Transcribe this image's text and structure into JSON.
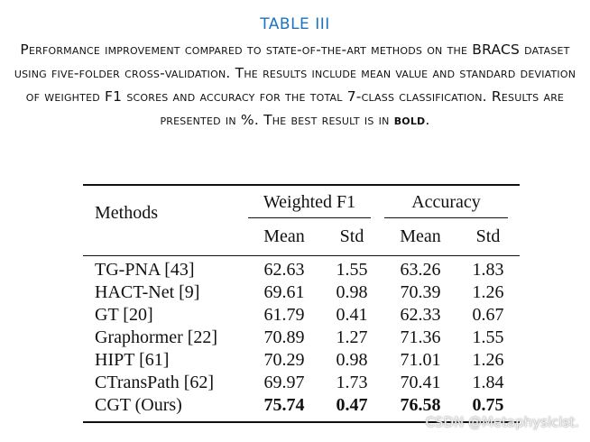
{
  "table_label": "TABLE III",
  "caption_text": "Performance improvement compared to state-of-the-art methods on the BRACS dataset using five-folder cross-validation. The results include mean value and standard deviation of weighted F1 scores and accuracy for the total 7-class classification. Results are presented in %. The best result is in",
  "caption_bold": "bold",
  "caption_end": ".",
  "header": {
    "methods": "Methods",
    "group1": "Weighted F1",
    "group2": "Accuracy",
    "mean1": "Mean",
    "std1": "Std",
    "mean2": "Mean",
    "std2": "Std"
  },
  "rows": [
    {
      "method": "TG-PNA [43]",
      "f1_mean": "62.63",
      "f1_std": "1.55",
      "acc_mean": "63.26",
      "acc_std": "1.83"
    },
    {
      "method": "HACT-Net [9]",
      "f1_mean": "69.61",
      "f1_std": "0.98",
      "acc_mean": "70.39",
      "acc_std": "1.26"
    },
    {
      "method": "GT [20]",
      "f1_mean": "61.79",
      "f1_std": "0.41",
      "acc_mean": "62.33",
      "acc_std": "0.67"
    },
    {
      "method": "Graphormer [22]",
      "f1_mean": "70.89",
      "f1_std": "1.27",
      "acc_mean": "71.36",
      "acc_std": "1.55"
    },
    {
      "method": "HIPT [61]",
      "f1_mean": "70.29",
      "f1_std": "0.98",
      "acc_mean": "71.01",
      "acc_std": "1.26"
    },
    {
      "method": "CTransPath [62]",
      "f1_mean": "69.97",
      "f1_std": "1.73",
      "acc_mean": "70.41",
      "acc_std": "1.84"
    },
    {
      "method": "CGT (Ours)",
      "f1_mean": "75.74",
      "f1_std": "0.47",
      "acc_mean": "76.58",
      "acc_std": "0.75"
    }
  ],
  "watermark": "CSDN @Metaphysicist."
}
